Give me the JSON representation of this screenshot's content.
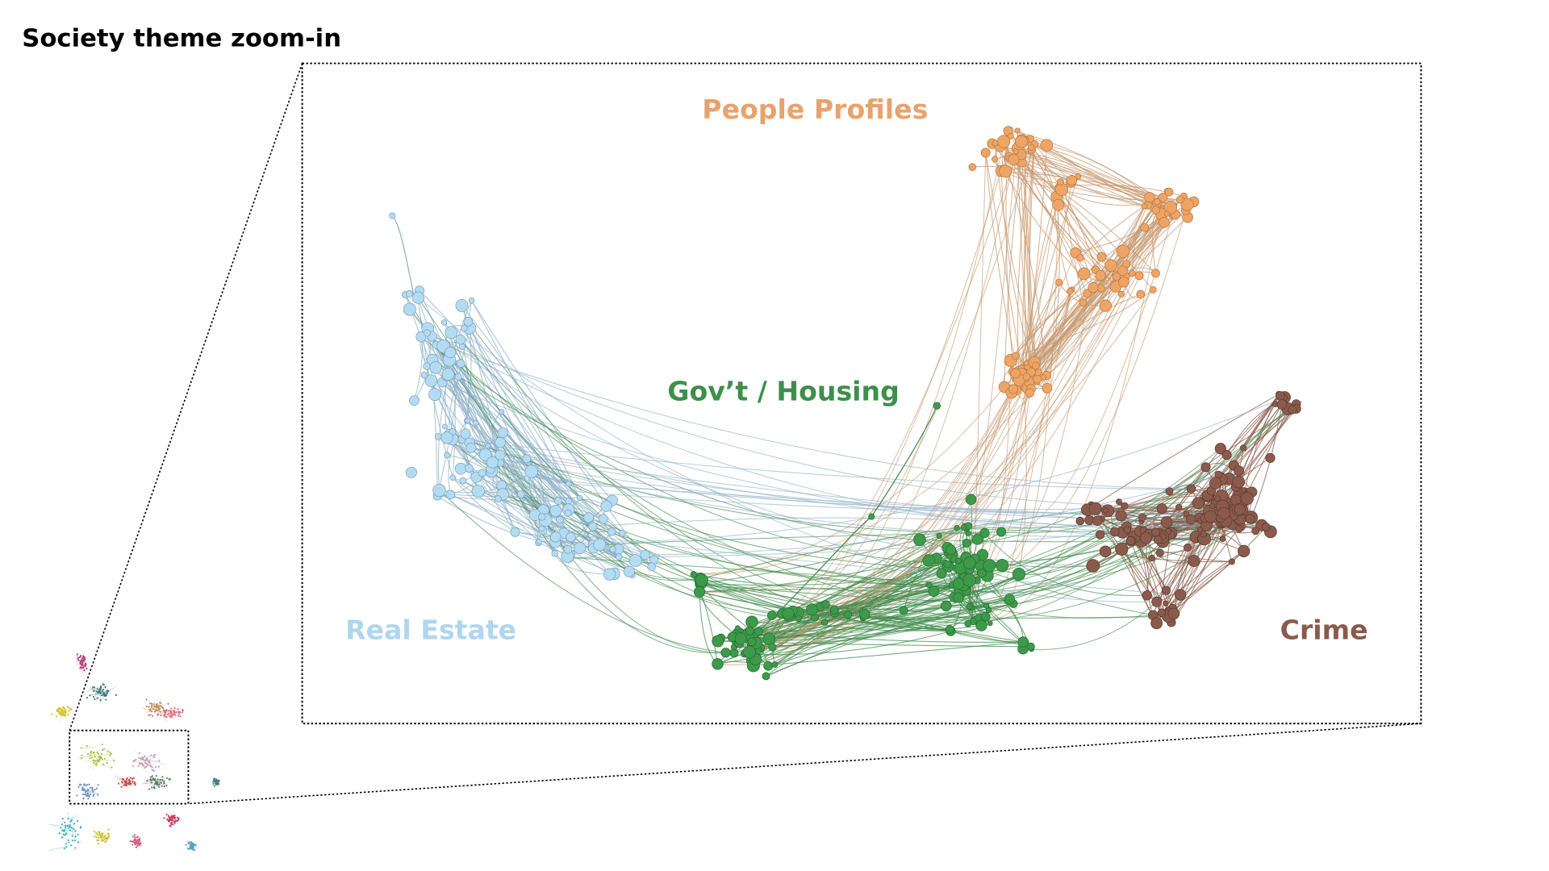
{
  "title": "Society theme zoom-in",
  "clusters": [
    {
      "label": "People Profiles"
    },
    {
      "label": "Gov’t / Housing"
    },
    {
      "label": "Real Estate"
    },
    {
      "label": "Crime"
    }
  ]
}
